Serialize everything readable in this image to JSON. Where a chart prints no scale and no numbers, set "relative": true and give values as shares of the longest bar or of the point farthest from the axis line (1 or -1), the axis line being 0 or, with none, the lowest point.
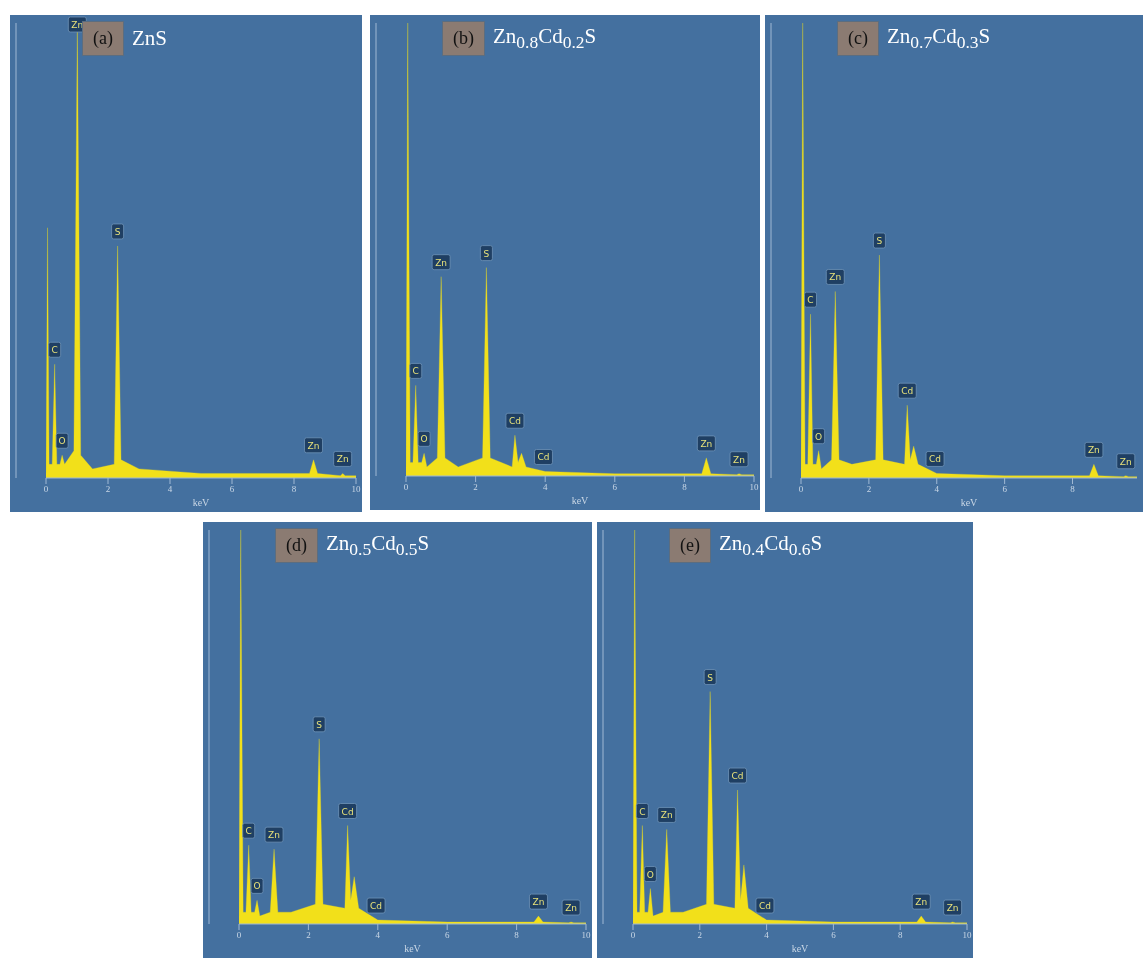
{
  "chart_data": [
    {
      "type": "area",
      "title": "(a)",
      "subtitle": "ZnS",
      "xlabel": "keV",
      "relative": true,
      "color": "#f2e01a",
      "xlim": [
        0,
        10
      ],
      "xticks": [
        0,
        2,
        4,
        6,
        8,
        10
      ],
      "x": [
        0,
        0.05,
        0.1,
        0.2,
        0.28,
        0.35,
        0.45,
        0.52,
        0.6,
        0.9,
        1.01,
        1.12,
        1.5,
        2.2,
        2.31,
        2.42,
        3,
        5,
        8.5,
        8.63,
        8.76,
        9.5,
        9.57,
        9.65,
        10
      ],
      "values": [
        0,
        0.55,
        0.03,
        0.03,
        0.25,
        0.03,
        0.03,
        0.05,
        0.03,
        0.06,
        1,
        0.05,
        0.02,
        0.03,
        0.51,
        0.04,
        0.02,
        0.01,
        0.01,
        0.04,
        0.01,
        0.005,
        0.01,
        0.005,
        0.005
      ],
      "annotations": [
        {
          "text": "C",
          "x": 0.28,
          "y": 0.25
        },
        {
          "text": "O",
          "x": 0.52,
          "y": 0.05
        },
        {
          "text": "Zn",
          "x": 1.01,
          "y": 1
        },
        {
          "text": "S",
          "x": 2.31,
          "y": 0.51
        },
        {
          "text": "Zn",
          "x": 8.63,
          "y": 0.04
        },
        {
          "text": "Zn",
          "x": 9.57,
          "y": 0.01
        }
      ]
    },
    {
      "type": "area",
      "title": "(b)",
      "subtitle": "Zn$_{0.8}$Cd$_{0.2}$S",
      "xlabel": "keV",
      "relative": true,
      "color": "#f2e01a",
      "xlim": [
        0,
        10
      ],
      "xticks": [
        0,
        2,
        4,
        6,
        8,
        10
      ],
      "x": [
        0,
        0.05,
        0.12,
        0.2,
        0.28,
        0.35,
        0.45,
        0.52,
        0.6,
        0.9,
        1.01,
        1.12,
        1.5,
        2.2,
        2.31,
        2.42,
        3.05,
        3.13,
        3.22,
        3.32,
        3.45,
        4,
        6,
        8.5,
        8.63,
        8.76,
        9.5,
        9.57,
        9.65,
        10
      ],
      "values": [
        0,
        1,
        0.03,
        0.03,
        0.2,
        0.03,
        0.03,
        0.05,
        0.02,
        0.04,
        0.44,
        0.04,
        0.02,
        0.04,
        0.46,
        0.04,
        0.02,
        0.09,
        0.03,
        0.05,
        0.02,
        0.01,
        0.005,
        0.005,
        0.04,
        0.005,
        0.003,
        0.005,
        0.003,
        0.003
      ],
      "annotations": [
        {
          "text": "C",
          "x": 0.28,
          "y": 0.2
        },
        {
          "text": "O",
          "x": 0.52,
          "y": 0.05
        },
        {
          "text": "Zn",
          "x": 1.01,
          "y": 0.44
        },
        {
          "text": "S",
          "x": 2.31,
          "y": 0.46
        },
        {
          "text": "Cd",
          "x": 3.13,
          "y": 0.09
        },
        {
          "text": "Cd",
          "x": 3.95,
          "y": 0.01
        },
        {
          "text": "Zn",
          "x": 8.63,
          "y": 0.04
        },
        {
          "text": "Zn",
          "x": 9.57,
          "y": 0.005
        }
      ]
    },
    {
      "type": "area",
      "title": "(c)",
      "subtitle": "Zn$_{0.7}$Cd$_{0.3}$S",
      "xlabel": "keV",
      "relative": true,
      "color": "#f2e01a",
      "xlim": [
        0,
        9.9
      ],
      "xticks": [
        0,
        2,
        4,
        6,
        8
      ],
      "x": [
        0,
        0.05,
        0.12,
        0.2,
        0.28,
        0.35,
        0.45,
        0.52,
        0.6,
        0.9,
        1.01,
        1.12,
        1.5,
        2.2,
        2.31,
        2.42,
        3.05,
        3.13,
        3.22,
        3.32,
        3.45,
        4,
        6,
        8.5,
        8.63,
        8.76,
        9.5,
        9.57,
        9.65,
        9.9
      ],
      "values": [
        0,
        1,
        0.03,
        0.03,
        0.36,
        0.03,
        0.03,
        0.06,
        0.02,
        0.04,
        0.41,
        0.04,
        0.03,
        0.04,
        0.49,
        0.04,
        0.03,
        0.16,
        0.04,
        0.07,
        0.03,
        0.01,
        0.005,
        0.005,
        0.03,
        0.005,
        0.003,
        0.005,
        0.003,
        0.003
      ],
      "annotations": [
        {
          "text": "C",
          "x": 0.28,
          "y": 0.36
        },
        {
          "text": "O",
          "x": 0.52,
          "y": 0.06
        },
        {
          "text": "Zn",
          "x": 1.01,
          "y": 0.41
        },
        {
          "text": "S",
          "x": 2.31,
          "y": 0.49
        },
        {
          "text": "Cd",
          "x": 3.13,
          "y": 0.16
        },
        {
          "text": "Cd",
          "x": 3.95,
          "y": 0.01
        },
        {
          "text": "Zn",
          "x": 8.63,
          "y": 0.03
        },
        {
          "text": "Zn",
          "x": 9.57,
          "y": 0.005
        }
      ]
    },
    {
      "type": "area",
      "title": "(d)",
      "subtitle": "Zn$_{0.5}$Cd$_{0.5}$S",
      "xlabel": "keV",
      "relative": true,
      "color": "#f2e01a",
      "xlim": [
        0,
        10
      ],
      "xticks": [
        0,
        2,
        4,
        6,
        8,
        10
      ],
      "x": [
        0,
        0.05,
        0.12,
        0.2,
        0.28,
        0.35,
        0.45,
        0.52,
        0.6,
        0.9,
        1.01,
        1.12,
        1.5,
        2.2,
        2.31,
        2.42,
        3.05,
        3.13,
        3.22,
        3.32,
        3.45,
        4,
        6,
        8.5,
        8.63,
        8.76,
        9.5,
        9.57,
        9.65,
        10
      ],
      "values": [
        0,
        1,
        0.03,
        0.03,
        0.2,
        0.03,
        0.03,
        0.06,
        0.02,
        0.03,
        0.19,
        0.03,
        0.03,
        0.05,
        0.47,
        0.05,
        0.04,
        0.25,
        0.06,
        0.12,
        0.04,
        0.01,
        0.005,
        0.005,
        0.02,
        0.005,
        0.003,
        0.005,
        0.003,
        0.003
      ],
      "annotations": [
        {
          "text": "C",
          "x": 0.28,
          "y": 0.2
        },
        {
          "text": "O",
          "x": 0.52,
          "y": 0.06
        },
        {
          "text": "Zn",
          "x": 1.01,
          "y": 0.19
        },
        {
          "text": "S",
          "x": 2.31,
          "y": 0.47
        },
        {
          "text": "Cd",
          "x": 3.13,
          "y": 0.25
        },
        {
          "text": "Cd",
          "x": 3.95,
          "y": 0.01
        },
        {
          "text": "Zn",
          "x": 8.63,
          "y": 0.02
        },
        {
          "text": "Zn",
          "x": 9.57,
          "y": 0.005
        }
      ]
    },
    {
      "type": "area",
      "title": "(e)",
      "subtitle": "Zn$_{0.4}$Cd$_{0.6}$S",
      "xlabel": "keV",
      "relative": true,
      "color": "#f2e01a",
      "xlim": [
        0,
        10
      ],
      "xticks": [
        0,
        2,
        4,
        6,
        8,
        10
      ],
      "x": [
        0,
        0.05,
        0.12,
        0.2,
        0.28,
        0.35,
        0.45,
        0.52,
        0.6,
        0.9,
        1.01,
        1.12,
        1.5,
        2.2,
        2.31,
        2.42,
        3.05,
        3.13,
        3.22,
        3.32,
        3.45,
        4,
        6,
        8.5,
        8.63,
        8.76,
        9.5,
        9.57,
        9.65,
        10
      ],
      "values": [
        0,
        1,
        0.03,
        0.03,
        0.25,
        0.03,
        0.03,
        0.09,
        0.02,
        0.03,
        0.24,
        0.03,
        0.03,
        0.05,
        0.59,
        0.05,
        0.04,
        0.34,
        0.06,
        0.15,
        0.04,
        0.01,
        0.005,
        0.005,
        0.02,
        0.005,
        0.003,
        0.005,
        0.003,
        0.003
      ],
      "annotations": [
        {
          "text": "C",
          "x": 0.28,
          "y": 0.25
        },
        {
          "text": "O",
          "x": 0.52,
          "y": 0.09
        },
        {
          "text": "Zn",
          "x": 1.01,
          "y": 0.24
        },
        {
          "text": "S",
          "x": 2.31,
          "y": 0.59
        },
        {
          "text": "Cd",
          "x": 3.13,
          "y": 0.34
        },
        {
          "text": "Cd",
          "x": 3.95,
          "y": 0.01
        },
        {
          "text": "Zn",
          "x": 8.63,
          "y": 0.02
        },
        {
          "text": "Zn",
          "x": 9.57,
          "y": 0.005
        }
      ]
    }
  ]
}
